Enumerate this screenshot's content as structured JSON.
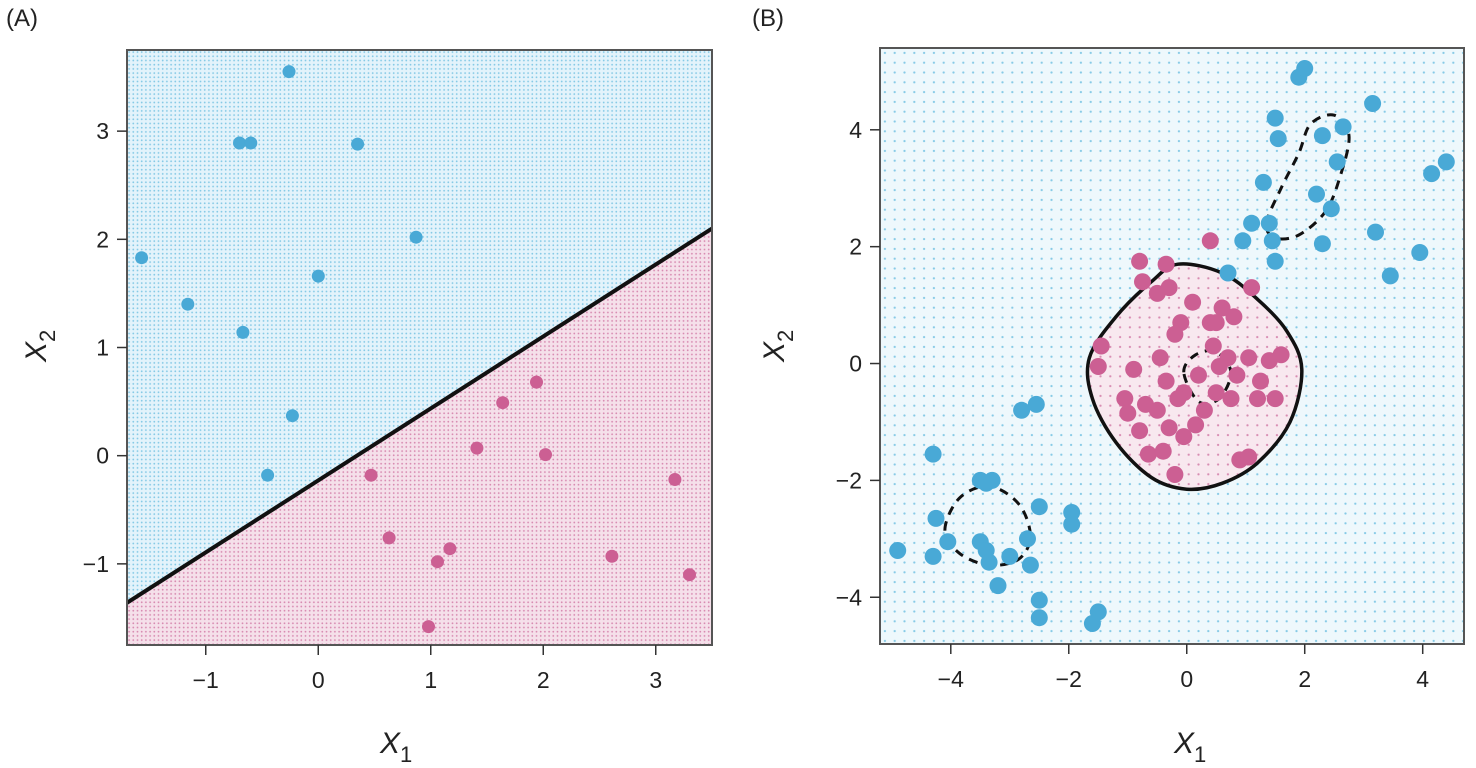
{
  "colors": {
    "class_blue": "#49a9d6",
    "class_pink": "#cc5f93",
    "grid_blue": "#86cae6",
    "grid_pink": "#d88cb2",
    "region_blue": "#e3f3fb",
    "region_pink": "#f5e0ea",
    "boundary": "#111111"
  },
  "chart_data": [
    {
      "type": "scatter",
      "panel_label": "(A)",
      "xlabel": "X",
      "xlabel_sub": "1",
      "ylabel": "X",
      "ylabel_sub": "2",
      "xlim": [
        -1.7,
        3.5
      ],
      "ylim": [
        -1.75,
        3.75
      ],
      "x_ticks": [
        -1,
        0,
        1,
        2,
        3
      ],
      "y_ticks": [
        -1,
        0,
        1,
        2,
        3
      ],
      "x_tick_labels": [
        "−1",
        "0",
        "1",
        "2",
        "3"
      ],
      "y_tick_labels": [
        "−1",
        "0",
        "1",
        "2",
        "3"
      ],
      "background": "classification grid dots",
      "decision_boundary": {
        "kind": "linear",
        "points": [
          [
            -1.7,
            -1.36
          ],
          [
            3.5,
            2.1
          ]
        ]
      },
      "series": [
        {
          "color": "blue",
          "points": [
            [
              -1.57,
              1.83
            ],
            [
              -1.16,
              1.4
            ],
            [
              -0.7,
              2.89
            ],
            [
              -0.6,
              2.89
            ],
            [
              -0.26,
              3.55
            ],
            [
              -0.67,
              1.14
            ],
            [
              0.35,
              2.88
            ],
            [
              0.87,
              2.02
            ],
            [
              0.0,
              1.66
            ],
            [
              -0.23,
              0.37
            ],
            [
              -0.45,
              -0.18
            ]
          ]
        },
        {
          "color": "pink",
          "points": [
            [
              0.47,
              -0.18
            ],
            [
              1.41,
              0.07
            ],
            [
              1.64,
              0.49
            ],
            [
              1.94,
              0.68
            ],
            [
              2.02,
              0.01
            ],
            [
              0.63,
              -0.76
            ],
            [
              1.06,
              -0.98
            ],
            [
              1.17,
              -0.86
            ],
            [
              2.61,
              -0.93
            ],
            [
              3.17,
              -0.22
            ],
            [
              3.3,
              -1.1
            ],
            [
              0.98,
              -1.58
            ]
          ]
        }
      ]
    },
    {
      "type": "scatter",
      "panel_label": "(B)",
      "xlabel": "X",
      "xlabel_sub": "1",
      "ylabel": "X",
      "ylabel_sub": "2",
      "xlim": [
        -5.2,
        4.7
      ],
      "ylim": [
        -4.8,
        5.4
      ],
      "x_ticks": [
        -4,
        -2,
        0,
        2,
        4
      ],
      "y_ticks": [
        -4,
        -2,
        0,
        2,
        4
      ],
      "x_tick_labels": [
        "−4",
        "−2",
        "0",
        "2",
        "4"
      ],
      "y_tick_labels": [
        "−4",
        "−2",
        "0",
        "2",
        "4"
      ],
      "background": "classification grid dots",
      "decision_boundary_solid": [
        [
          -1.6,
          -0.6
        ],
        [
          -1.65,
          0.1
        ],
        [
          -1.2,
          0.8
        ],
        [
          -0.6,
          1.4
        ],
        [
          -0.15,
          1.7
        ],
        [
          0.6,
          1.55
        ],
        [
          1.2,
          1.1
        ],
        [
          1.7,
          0.55
        ],
        [
          1.95,
          -0.1
        ],
        [
          1.75,
          -1.0
        ],
        [
          1.2,
          -1.7
        ],
        [
          0.6,
          -2.05
        ],
        [
          0.0,
          -2.15
        ],
        [
          -0.6,
          -1.95
        ],
        [
          -1.2,
          -1.35
        ],
        [
          -1.6,
          -0.6
        ]
      ],
      "decision_boundary_dashed": [
        [
          [
            1.35,
            2.4
          ],
          [
            1.6,
            3.0
          ],
          [
            1.9,
            3.6
          ],
          [
            2.1,
            4.1
          ],
          [
            2.5,
            4.25
          ],
          [
            2.75,
            3.9
          ],
          [
            2.6,
            3.2
          ],
          [
            2.35,
            2.6
          ],
          [
            1.9,
            2.2
          ],
          [
            1.5,
            2.15
          ],
          [
            1.35,
            2.4
          ]
        ],
        [
          [
            -0.05,
            -0.15
          ],
          [
            0.15,
            0.15
          ],
          [
            0.5,
            0.2
          ],
          [
            0.75,
            -0.15
          ],
          [
            0.55,
            -0.6
          ],
          [
            0.2,
            -0.65
          ],
          [
            -0.05,
            -0.15
          ]
        ],
        [
          [
            -4.1,
            -2.85
          ],
          [
            -3.85,
            -2.3
          ],
          [
            -3.35,
            -2.1
          ],
          [
            -2.85,
            -2.4
          ],
          [
            -2.65,
            -2.95
          ],
          [
            -2.85,
            -3.35
          ],
          [
            -3.35,
            -3.45
          ],
          [
            -3.85,
            -3.25
          ],
          [
            -4.1,
            -2.85
          ]
        ]
      ],
      "series": [
        {
          "color": "blue",
          "points": [
            [
              1.9,
              4.9
            ],
            [
              2.0,
              5.05
            ],
            [
              2.3,
              3.9
            ],
            [
              2.65,
              4.05
            ],
            [
              3.15,
              4.45
            ],
            [
              1.5,
              4.2
            ],
            [
              1.55,
              3.85
            ],
            [
              1.3,
              3.1
            ],
            [
              2.55,
              3.45
            ],
            [
              2.2,
              2.9
            ],
            [
              2.45,
              2.65
            ],
            [
              2.3,
              2.05
            ],
            [
              1.5,
              1.75
            ],
            [
              1.45,
              2.1
            ],
            [
              1.1,
              2.4
            ],
            [
              1.4,
              2.4
            ],
            [
              0.95,
              2.1
            ],
            [
              0.7,
              1.55
            ],
            [
              3.2,
              2.25
            ],
            [
              3.45,
              1.5
            ],
            [
              4.15,
              3.25
            ],
            [
              4.4,
              3.45
            ],
            [
              3.95,
              1.9
            ],
            [
              -2.8,
              -0.8
            ],
            [
              -2.55,
              -0.7
            ],
            [
              -4.3,
              -1.55
            ],
            [
              -4.25,
              -2.65
            ],
            [
              -4.05,
              -3.05
            ],
            [
              -3.5,
              -2.0
            ],
            [
              -3.4,
              -2.05
            ],
            [
              -3.3,
              -2.0
            ],
            [
              -3.5,
              -3.05
            ],
            [
              -3.4,
              -3.2
            ],
            [
              -3.35,
              -3.4
            ],
            [
              -3.2,
              -3.8
            ],
            [
              -3.0,
              -3.3
            ],
            [
              -4.3,
              -3.3
            ],
            [
              -4.9,
              -3.2
            ],
            [
              -2.7,
              -3.0
            ],
            [
              -2.65,
              -3.45
            ],
            [
              -2.5,
              -2.45
            ],
            [
              -1.95,
              -2.55
            ],
            [
              -1.95,
              -2.75
            ],
            [
              -2.5,
              -4.05
            ],
            [
              -2.5,
              -4.35
            ],
            [
              -1.5,
              -4.25
            ],
            [
              -1.6,
              -4.45
            ]
          ]
        },
        {
          "color": "pink",
          "points": [
            [
              -0.8,
              1.75
            ],
            [
              -0.35,
              1.7
            ],
            [
              0.4,
              2.1
            ],
            [
              -0.75,
              1.4
            ],
            [
              -0.5,
              1.2
            ],
            [
              -0.3,
              1.3
            ],
            [
              0.1,
              1.05
            ],
            [
              0.4,
              0.7
            ],
            [
              0.6,
              0.95
            ],
            [
              0.8,
              0.8
            ],
            [
              1.1,
              1.3
            ],
            [
              -0.1,
              0.7
            ],
            [
              0.5,
              0.7
            ],
            [
              0.45,
              0.3
            ],
            [
              0.7,
              0.1
            ],
            [
              1.05,
              0.1
            ],
            [
              1.4,
              0.05
            ],
            [
              1.6,
              0.15
            ],
            [
              -1.45,
              0.3
            ],
            [
              -1.5,
              -0.05
            ],
            [
              -0.9,
              -0.1
            ],
            [
              -0.45,
              0.1
            ],
            [
              -0.35,
              -0.3
            ],
            [
              -0.05,
              -0.5
            ],
            [
              0.2,
              -0.2
            ],
            [
              0.5,
              -0.5
            ],
            [
              0.75,
              -0.6
            ],
            [
              1.2,
              -0.6
            ],
            [
              1.5,
              -0.6
            ],
            [
              -1.05,
              -0.6
            ],
            [
              -1.0,
              -0.85
            ],
            [
              -0.7,
              -0.7
            ],
            [
              -0.8,
              -1.15
            ],
            [
              -0.3,
              -1.1
            ],
            [
              0.3,
              -0.8
            ],
            [
              -0.65,
              -1.55
            ],
            [
              -0.4,
              -1.5
            ],
            [
              -0.2,
              -1.9
            ],
            [
              0.9,
              -1.65
            ],
            [
              1.05,
              -1.6
            ],
            [
              -0.05,
              -1.25
            ],
            [
              0.15,
              -1.05
            ],
            [
              -0.2,
              0.5
            ],
            [
              -0.5,
              -0.8
            ],
            [
              0.85,
              -0.2
            ],
            [
              1.25,
              -0.3
            ],
            [
              -0.15,
              -0.6
            ],
            [
              0.55,
              -0.05
            ]
          ]
        }
      ]
    }
  ]
}
